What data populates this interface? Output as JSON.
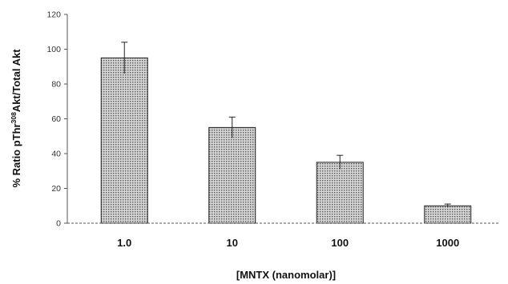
{
  "chart_data": {
    "type": "bar",
    "categories": [
      "1.0",
      "10",
      "100",
      "1000"
    ],
    "values": [
      95,
      55,
      35,
      10
    ],
    "errors": [
      9,
      6,
      4,
      1
    ],
    "yticks": [
      0,
      20,
      40,
      60,
      80,
      100,
      120
    ],
    "ylim": [
      0,
      120
    ],
    "title": "",
    "xlabel": "[MNTX (nanomolar)]",
    "ylabel": {
      "pre": "% Ratio pThr",
      "sup": "308",
      "post": "Akt/Total Akt"
    },
    "grid": false,
    "legend": "none",
    "colors": {
      "bar_fill": "#c8c8c8",
      "bar_dots": "#555555",
      "bar_edge": "#222222",
      "axis": "#555555"
    }
  }
}
